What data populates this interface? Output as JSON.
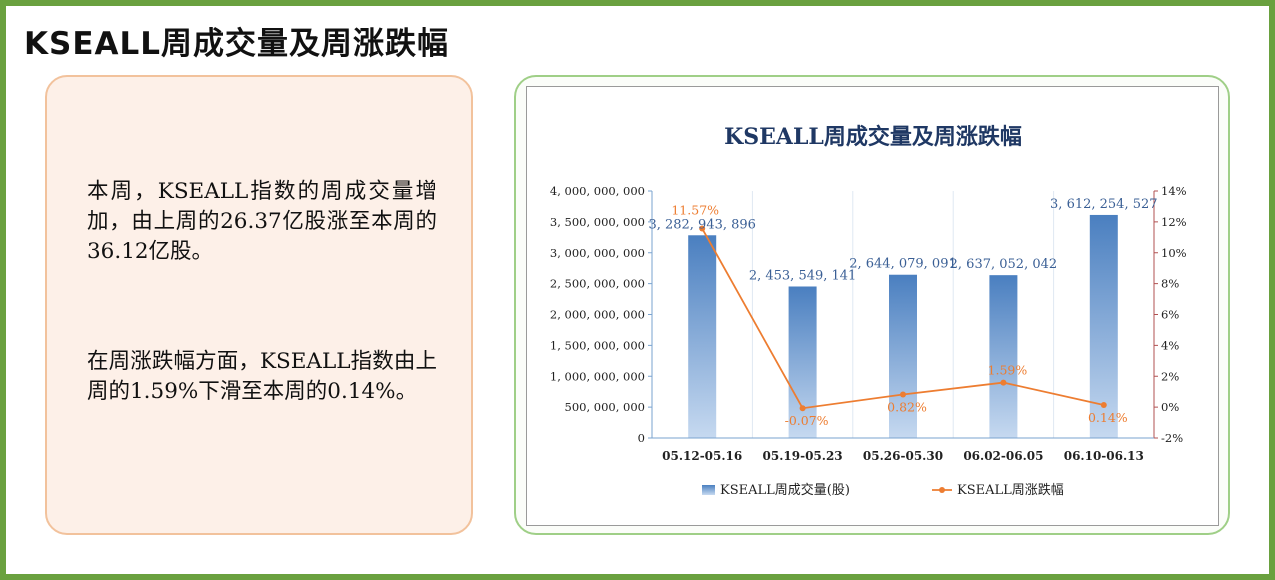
{
  "page": {
    "title": "KSEALL周成交量及周涨跌幅"
  },
  "commentary": {
    "para1": "本周，KSEALL指数的周成交量增加，由上周的26.37亿股涨至本周的36.12亿股。",
    "para2": "在周涨跌幅方面，KSEALL指数由上周的1.59%下滑至本周的0.14%。"
  },
  "chart_data": {
    "type": "bar",
    "title": "KSEALL周成交量及周涨跌幅",
    "categories": [
      "05.12-05.16",
      "05.19-05.23",
      "05.26-05.30",
      "06.02-06.05",
      "06.10-06.13"
    ],
    "series": [
      {
        "name": "KSEALL周成交量(股)",
        "type": "bar",
        "axis": "left",
        "values": [
          3282943896,
          2453549141,
          2644079091,
          2637052042,
          3612254527
        ],
        "labels": [
          "3, 282, 943, 896",
          "2, 453, 549, 141",
          "2, 644, 079, 091",
          "2, 637, 052, 042",
          "3, 612, 254, 527"
        ]
      },
      {
        "name": "KSEALL周涨跌幅",
        "type": "line",
        "axis": "right",
        "values": [
          11.57,
          -0.07,
          0.82,
          1.59,
          0.14
        ],
        "labels": [
          "11.57%",
          "-0.07%",
          "0.82%",
          "1.59%",
          "0.14%"
        ]
      }
    ],
    "y_left": {
      "range": [
        0,
        4000000000
      ],
      "ticks": [
        0,
        500000000,
        1000000000,
        1500000000,
        2000000000,
        2500000000,
        3000000000,
        3500000000,
        4000000000
      ],
      "tick_labels": [
        "0",
        "500, 000, 000",
        "1, 000, 000, 000",
        "1, 500, 000, 000",
        "2, 000, 000, 000",
        "2, 500, 000, 000",
        "3, 000, 000, 000",
        "3, 500, 000, 000",
        "4, 000, 000, 000"
      ]
    },
    "y_right": {
      "range": [
        -2,
        14
      ],
      "ticks": [
        -2,
        0,
        2,
        4,
        6,
        8,
        10,
        12,
        14
      ],
      "tick_labels": [
        "-2%",
        "0%",
        "2%",
        "4%",
        "6%",
        "8%",
        "10%",
        "12%",
        "14%"
      ]
    },
    "legend": {
      "position": "bottom"
    },
    "colors": {
      "bar_top": "#4a7fc0",
      "bar_bottom": "#c6d9f0",
      "line": "#ed7d31",
      "bar_label": "#3a5f95",
      "line_label": "#ed7d31",
      "title": "#1f3864",
      "left_axis": "#7aa3cf",
      "right_axis": "#b05050"
    }
  }
}
